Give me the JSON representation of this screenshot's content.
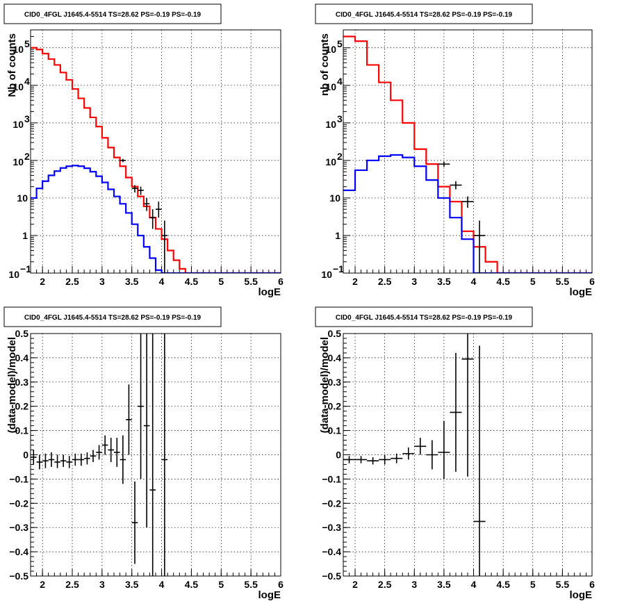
{
  "chart_data": [
    {
      "type": "histogram",
      "title": "CID0_4FGL J1645.4-5514 TS=28.62 PS=-0.19 PS=-0.19",
      "xlabel": "logE",
      "ylabel": "Nb of counts",
      "xlim": [
        1.8,
        6.0
      ],
      "ylim": [
        0.1,
        300000
      ],
      "yscale": "log",
      "grid": true,
      "x_ticks": [
        "2",
        "2.5",
        "3",
        "3.5",
        "4",
        "4.5",
        "5",
        "5.5",
        "6"
      ],
      "y_ticks": [
        {
          "value": 0.1,
          "base": "10",
          "exp": "−1"
        },
        {
          "value": 1,
          "label": "1"
        },
        {
          "value": 10,
          "label": "10"
        },
        {
          "value": 100,
          "base": "10",
          "exp": "2"
        },
        {
          "value": 1000,
          "base": "10",
          "exp": "3"
        },
        {
          "value": 10000,
          "base": "10",
          "exp": "4"
        },
        {
          "value": 100000,
          "base": "10",
          "exp": "5"
        }
      ],
      "bin_edges": [
        1.8,
        1.9,
        2.0,
        2.1,
        2.2,
        2.3,
        2.4,
        2.5,
        2.6,
        2.7,
        2.8,
        2.9,
        3.0,
        3.1,
        3.2,
        3.3,
        3.4,
        3.5,
        3.6,
        3.7,
        3.8,
        3.9,
        4.0,
        4.1,
        4.2,
        4.3,
        4.4,
        4.5,
        4.6,
        4.7,
        4.8,
        4.9,
        5.0,
        5.1,
        5.2,
        5.3,
        5.4,
        5.5,
        5.6,
        5.7,
        5.8,
        5.9,
        6.0
      ],
      "series": [
        {
          "name": "",
          "color": "#ff0000",
          "style": "step",
          "values": [
            100000,
            90000,
            70000,
            50000,
            35000,
            22000,
            14000,
            8000,
            4500,
            2500,
            1400,
            800,
            400,
            220,
            120,
            70,
            35,
            20,
            11,
            6,
            3,
            1.5,
            0.8,
            0.4,
            0.22,
            0.13,
            0.1,
            0.1,
            0.1,
            0.1,
            0.1,
            0.1,
            0.1,
            0.1,
            0.1,
            0.1,
            0.1,
            0.1,
            0.1,
            0.1,
            0.1,
            0.1
          ]
        },
        {
          "name": "",
          "color": "#0000ff",
          "style": "step",
          "values": [
            10,
            18,
            28,
            40,
            52,
            63,
            70,
            73,
            70,
            62,
            50,
            38,
            26,
            17,
            11,
            7,
            4,
            2,
            1,
            0.5,
            0.25,
            0.12,
            0.1,
            0.1,
            0.1,
            0.1,
            0.1,
            0.1,
            0.1,
            0.1,
            0.1,
            0.1,
            0.1,
            0.1,
            0.1,
            0.1,
            0.1,
            0.1,
            0.1,
            0.1,
            0.1,
            0.1
          ]
        },
        {
          "name": "",
          "color": "#000000",
          "style": "errorbar",
          "xerr": 0.05,
          "points": [
            {
              "x": 3.35,
              "y": 100,
              "lo": 90,
              "hi": 110
            },
            {
              "x": 3.55,
              "y": 18,
              "lo": 14,
              "hi": 22
            },
            {
              "x": 3.65,
              "y": 16,
              "lo": 12,
              "hi": 20
            },
            {
              "x": 3.75,
              "y": 7,
              "lo": 4.5,
              "hi": 10
            },
            {
              "x": 3.85,
              "y": 3,
              "lo": 1.5,
              "hi": 5
            },
            {
              "x": 3.95,
              "y": 5,
              "lo": 3,
              "hi": 8
            },
            {
              "x": 4.05,
              "y": 1,
              "lo": 0.1,
              "hi": 2.5
            }
          ]
        }
      ]
    },
    {
      "type": "histogram",
      "title": "CID0_4FGL J1645.4-5514 TS=28.62 PS=-0.19 PS=-0.19",
      "xlabel": "logE",
      "ylabel": "nb of counts",
      "xlim": [
        1.8,
        6.0
      ],
      "ylim": [
        0.1,
        300000
      ],
      "yscale": "log",
      "grid": true,
      "x_ticks": [
        "2",
        "2.5",
        "3",
        "3.5",
        "4",
        "4.5",
        "5",
        "5.5",
        "6"
      ],
      "y_ticks": [
        {
          "value": 0.1,
          "base": "10",
          "exp": "−1"
        },
        {
          "value": 1,
          "label": "1"
        },
        {
          "value": 10,
          "label": "10"
        },
        {
          "value": 100,
          "base": "10",
          "exp": "2"
        },
        {
          "value": 1000,
          "base": "10",
          "exp": "3"
        },
        {
          "value": 10000,
          "base": "10",
          "exp": "4"
        },
        {
          "value": 100000,
          "base": "10",
          "exp": "5"
        }
      ],
      "bin_edges": [
        1.8,
        2.0,
        2.2,
        2.4,
        2.6,
        2.8,
        3.0,
        3.2,
        3.4,
        3.6,
        3.8,
        4.0,
        4.2,
        4.4,
        4.6,
        4.8,
        5.0,
        5.2,
        5.4,
        5.6,
        5.8,
        6.0
      ],
      "series": [
        {
          "name": "",
          "color": "#ff0000",
          "style": "step",
          "values": [
            200000,
            150000,
            35000,
            12000,
            4000,
            1000,
            200,
            80,
            20,
            8,
            1.3,
            0.5,
            0.2,
            0.1,
            0.1,
            0.1,
            0.1,
            0.1,
            0.1,
            0.1,
            0.1
          ]
        },
        {
          "name": "",
          "color": "#0000ff",
          "style": "step",
          "values": [
            16,
            55,
            100,
            130,
            140,
            120,
            70,
            30,
            10,
            3,
            0.8,
            0.1,
            0.1,
            0.1,
            0.1,
            0.1,
            0.1,
            0.1,
            0.1,
            0.1,
            0.1
          ]
        },
        {
          "name": "",
          "color": "#000000",
          "style": "errorbar",
          "xerr": 0.1,
          "points": [
            {
              "x": 3.5,
              "y": 80,
              "lo": 68,
              "hi": 92
            },
            {
              "x": 3.7,
              "y": 22,
              "lo": 17,
              "hi": 28
            },
            {
              "x": 3.9,
              "y": 8,
              "lo": 5.5,
              "hi": 11
            },
            {
              "x": 4.1,
              "y": 1,
              "lo": 0.1,
              "hi": 2.5
            }
          ]
        }
      ]
    },
    {
      "type": "scatter",
      "title": "CID0_4FGL J1645.4-5514 TS=28.62 PS=-0.19 PS=-0.19",
      "xlabel": "logE",
      "ylabel": "(data-model)/model",
      "xlim": [
        1.8,
        6.0
      ],
      "ylim": [
        -0.5,
        0.5
      ],
      "grid": true,
      "x_ticks": [
        "2",
        "2.5",
        "3",
        "3.5",
        "4",
        "4.5",
        "5",
        "5.5",
        "6"
      ],
      "y_ticks": [
        "−0.5",
        "−0.4",
        "−0.3",
        "−0.2",
        "−0.1",
        "0",
        "0.1",
        "0.2",
        "0.3",
        "0.4",
        "0.5"
      ],
      "series": [
        {
          "name": "",
          "color": "#000000",
          "style": "errorbar",
          "xerr": 0.05,
          "points": [
            {
              "x": 1.85,
              "y": -0.01,
              "lo": -0.04,
              "hi": 0.02
            },
            {
              "x": 1.95,
              "y": -0.03,
              "lo": -0.06,
              "hi": 0.0
            },
            {
              "x": 2.05,
              "y": -0.025,
              "lo": -0.055,
              "hi": 0.005
            },
            {
              "x": 2.15,
              "y": -0.02,
              "lo": -0.05,
              "hi": 0.01
            },
            {
              "x": 2.25,
              "y": -0.03,
              "lo": -0.055,
              "hi": 0.0
            },
            {
              "x": 2.35,
              "y": -0.025,
              "lo": -0.05,
              "hi": 0.0
            },
            {
              "x": 2.45,
              "y": -0.03,
              "lo": -0.055,
              "hi": -0.005
            },
            {
              "x": 2.55,
              "y": -0.02,
              "lo": -0.045,
              "hi": 0.005
            },
            {
              "x": 2.65,
              "y": -0.02,
              "lo": -0.045,
              "hi": 0.005
            },
            {
              "x": 2.75,
              "y": -0.015,
              "lo": -0.04,
              "hi": 0.01
            },
            {
              "x": 2.85,
              "y": -0.005,
              "lo": -0.03,
              "hi": 0.02
            },
            {
              "x": 2.95,
              "y": 0.01,
              "lo": -0.02,
              "hi": 0.04
            },
            {
              "x": 3.05,
              "y": 0.04,
              "lo": 0.0,
              "hi": 0.08
            },
            {
              "x": 3.15,
              "y": 0.02,
              "lo": -0.03,
              "hi": 0.07
            },
            {
              "x": 3.25,
              "y": 0.01,
              "lo": -0.05,
              "hi": 0.07
            },
            {
              "x": 3.35,
              "y": -0.02,
              "lo": -0.12,
              "hi": 0.08
            },
            {
              "x": 3.45,
              "y": 0.145,
              "lo": 0.0,
              "hi": 0.29
            },
            {
              "x": 3.55,
              "y": -0.28,
              "lo": -0.45,
              "hi": -0.11
            },
            {
              "x": 3.65,
              "y": 0.2,
              "lo": -0.1,
              "hi": 0.5
            },
            {
              "x": 3.75,
              "y": 0.12,
              "lo": -0.3,
              "hi": 0.5
            },
            {
              "x": 3.85,
              "y": -0.145,
              "lo": -0.5,
              "hi": 0.5
            },
            {
              "x": 4.05,
              "y": -0.02,
              "lo": -0.5,
              "hi": 0.5
            }
          ]
        }
      ]
    },
    {
      "type": "scatter",
      "title": "CID0_4FGL J1645.4-5514 TS=28.62 PS=-0.19 PS=-0.19",
      "xlabel": "logE",
      "ylabel": "(data-model)/model",
      "xlim": [
        1.8,
        6.0
      ],
      "ylim": [
        -0.5,
        0.5
      ],
      "grid": true,
      "x_ticks": [
        "2",
        "2.5",
        "3",
        "3.5",
        "4",
        "4.5",
        "5",
        "5.5",
        "6"
      ],
      "y_ticks": [
        "−0.5",
        "−0.4",
        "−0.3",
        "−0.2",
        "−0.1",
        "0",
        "0.1",
        "0.2",
        "0.3",
        "0.4",
        "0.5"
      ],
      "series": [
        {
          "name": "",
          "color": "#000000",
          "style": "errorbar",
          "xerr": 0.1,
          "points": [
            {
              "x": 1.9,
              "y": -0.02,
              "lo": -0.035,
              "hi": -0.005
            },
            {
              "x": 2.1,
              "y": -0.02,
              "lo": -0.035,
              "hi": -0.005
            },
            {
              "x": 2.3,
              "y": -0.025,
              "lo": -0.04,
              "hi": -0.01
            },
            {
              "x": 2.5,
              "y": -0.02,
              "lo": -0.04,
              "hi": 0.0
            },
            {
              "x": 2.7,
              "y": -0.015,
              "lo": -0.035,
              "hi": 0.005
            },
            {
              "x": 2.9,
              "y": 0.005,
              "lo": -0.02,
              "hi": 0.03
            },
            {
              "x": 3.1,
              "y": 0.035,
              "lo": 0.0,
              "hi": 0.07
            },
            {
              "x": 3.3,
              "y": 0.0,
              "lo": -0.06,
              "hi": 0.06
            },
            {
              "x": 3.5,
              "y": 0.01,
              "lo": -0.1,
              "hi": 0.14
            },
            {
              "x": 3.7,
              "y": 0.175,
              "lo": -0.07,
              "hi": 0.42
            },
            {
              "x": 3.9,
              "y": 0.395,
              "lo": -0.09,
              "hi": 0.5
            },
            {
              "x": 4.1,
              "y": -0.275,
              "lo": -0.5,
              "hi": 0.45
            }
          ]
        }
      ]
    }
  ]
}
